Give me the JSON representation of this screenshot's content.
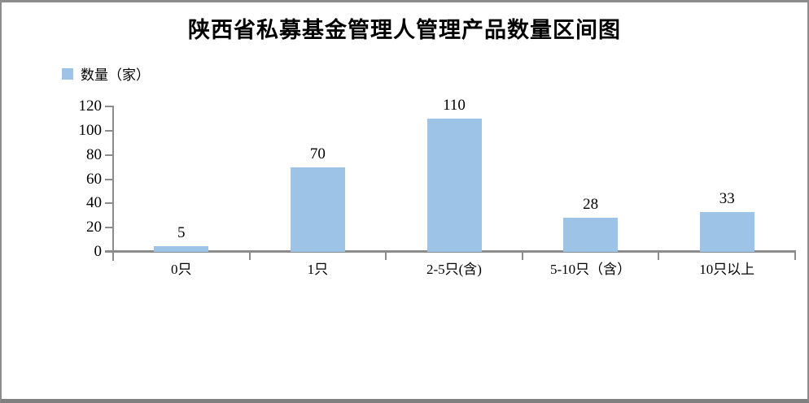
{
  "window": {
    "background": "#FFFFFF",
    "border_color": "#8C8C8C",
    "bottom_bar_color": "#7F7F7F"
  },
  "chart_data": {
    "type": "bar",
    "title": "陕西省私募基金管理人管理产品数量区间图",
    "legend": {
      "label": "数量（家）",
      "position": "top-left",
      "swatch_color": "#9DC3E6"
    },
    "categories": [
      "0只",
      "1只",
      "2-5只(含)",
      "5-10只（含）",
      "10只以上"
    ],
    "series": [
      {
        "name": "数量（家）",
        "values": [
          5,
          70,
          110,
          28,
          33
        ]
      }
    ],
    "data_labels_shown": true,
    "bar_color": "#9DC3E6",
    "axis_color": "#8C8C8C",
    "xlabel": "",
    "ylabel": "",
    "ylim": [
      0,
      120
    ],
    "yticks": [
      0,
      20,
      40,
      60,
      80,
      100,
      120
    ],
    "grid": false
  }
}
